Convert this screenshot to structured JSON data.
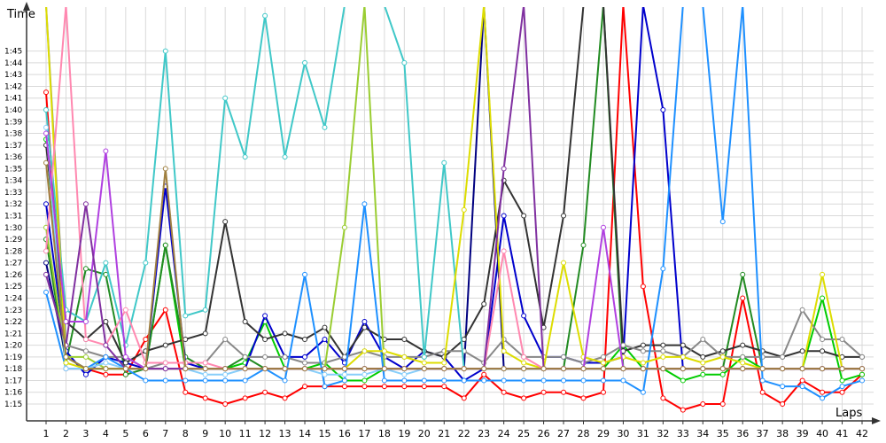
{
  "chart_data": {
    "type": "line",
    "title": "",
    "ylabel": "Time",
    "xlabel": "Laps",
    "x": [
      1,
      2,
      3,
      4,
      5,
      6,
      7,
      8,
      9,
      10,
      11,
      12,
      13,
      14,
      15,
      16,
      17,
      18,
      19,
      20,
      21,
      22,
      23,
      24,
      25,
      26,
      27,
      28,
      29,
      30,
      31,
      32,
      33,
      34,
      35,
      36,
      37,
      38,
      39,
      40,
      41,
      42
    ],
    "y_ticks": [
      "1:15",
      "1:16",
      "1:17",
      "1:18",
      "1:19",
      "1:20",
      "1:21",
      "1:22",
      "1:23",
      "1:24",
      "1:25",
      "1:26",
      "1:27",
      "1:28",
      "1:29",
      "1:30",
      "1:31",
      "1:32",
      "1:33",
      "1:34",
      "1:35",
      "1:36",
      "1:37",
      "1:38",
      "1:39",
      "1:40",
      "1:41",
      "1:42",
      "1:43",
      "1:44",
      "1:45"
    ],
    "ylim": [
      74,
      151
    ],
    "grid": true,
    "legend": "none",
    "series": [
      {
        "color": "#ff0000",
        "values": [
          101.5,
          78,
          78,
          77.5,
          77.5,
          80.5,
          83,
          76,
          75.5,
          75,
          75.5,
          76,
          75.5,
          76.5,
          76.5,
          76.5,
          76.5,
          76.5,
          76.5,
          76.5,
          76.5,
          75.5,
          77.5,
          76,
          75.5,
          76,
          76,
          75.5,
          76,
          150,
          85,
          75.5,
          74.5,
          75,
          75,
          84,
          76,
          75,
          77,
          76,
          76,
          77.5
        ]
      },
      {
        "color": "#00cc00",
        "values": [
          97.5,
          79,
          78,
          78,
          78,
          78,
          88.5,
          78,
          78,
          78,
          78.5,
          82,
          78,
          78,
          78.5,
          77,
          77,
          78,
          78,
          78,
          78,
          78,
          78,
          78,
          78,
          78,
          78,
          78,
          78,
          80,
          78,
          78,
          77,
          77.5,
          77.5,
          79,
          78,
          78,
          78,
          84,
          77,
          77.5
        ]
      },
      {
        "color": "#228b22",
        "values": [
          89,
          78.5,
          86.5,
          86,
          77.5,
          78,
          88.5,
          79,
          78,
          78,
          79,
          78,
          78,
          78,
          78,
          78,
          78,
          78,
          78,
          78,
          78,
          78,
          78,
          78,
          78,
          78,
          78,
          88.5,
          150,
          78,
          78,
          78,
          78,
          78,
          78,
          86,
          78,
          78,
          78,
          78,
          78,
          78
        ]
      },
      {
        "color": "#0000cc",
        "values": [
          92,
          79.5,
          77.5,
          79,
          78.5,
          78,
          93.5,
          78.5,
          78,
          78,
          78,
          82.5,
          79,
          79,
          80.5,
          78.5,
          82,
          79,
          78,
          79.5,
          79,
          77,
          78,
          91,
          82.5,
          79,
          79,
          78.5,
          78.5,
          79,
          150,
          100,
          78,
          78,
          78,
          78,
          78,
          78,
          78,
          78,
          78,
          78
        ]
      },
      {
        "color": "#000080",
        "values": [
          87,
          79,
          78,
          78,
          78,
          78,
          78,
          78,
          78,
          78,
          78,
          78,
          78,
          78,
          78,
          78,
          78,
          78,
          78,
          78,
          78,
          78,
          150,
          78,
          78,
          78,
          78,
          78,
          78,
          78,
          78,
          78,
          78,
          78,
          78,
          78,
          78,
          78,
          78,
          78,
          78,
          78
        ]
      },
      {
        "color": "#333333",
        "values": [
          97,
          82,
          80.5,
          82,
          78.5,
          79.5,
          80,
          80.5,
          81,
          90.5,
          82,
          80.5,
          81,
          80.5,
          81.5,
          79,
          81.5,
          80.5,
          80.5,
          79.5,
          79,
          80.5,
          83.5,
          94,
          91,
          81.5,
          91,
          150,
          150,
          79.5,
          80,
          80,
          80,
          79,
          79.5,
          80,
          79.5,
          79,
          79.5,
          79.5,
          79,
          79
        ]
      },
      {
        "color": "#888888",
        "values": [
          150,
          80,
          79.5,
          79,
          79,
          78,
          78.5,
          78.5,
          78.5,
          80.5,
          79,
          79,
          79,
          78.5,
          78.5,
          79,
          79.5,
          79,
          79,
          79,
          79.5,
          79.5,
          78.5,
          80.5,
          79,
          79,
          79,
          78.5,
          79,
          80,
          79.5,
          79.5,
          79,
          80.5,
          79,
          79,
          79,
          79,
          83,
          80.5,
          80.5,
          79
        ]
      },
      {
        "color": "#9acd32",
        "values": [
          90,
          79,
          79,
          78,
          78,
          78,
          78,
          78,
          78,
          78,
          78,
          78,
          78,
          78,
          78,
          90,
          150,
          78,
          78,
          78,
          78,
          78,
          78,
          78,
          78,
          78,
          78,
          78,
          78,
          78,
          78,
          78,
          78,
          78,
          78,
          78,
          78,
          78,
          78,
          78,
          78,
          78
        ]
      },
      {
        "color": "#40c8c8",
        "values": [
          100,
          83,
          82,
          87,
          80,
          87,
          105,
          82.5,
          83,
          101,
          96,
          108,
          96,
          104,
          98.5,
          150,
          150,
          150,
          104,
          79,
          95.5,
          78,
          78,
          78,
          78,
          78,
          78,
          78,
          78,
          78,
          78,
          78,
          78,
          78,
          78,
          78,
          78,
          78,
          78,
          78,
          78,
          78
        ]
      },
      {
        "color": "#1e90ff",
        "values": [
          84.5,
          78,
          78,
          79,
          78,
          77,
          77,
          77,
          77,
          77,
          77,
          78,
          77,
          86,
          76.5,
          77,
          92,
          77,
          77,
          77,
          77,
          77,
          77,
          77,
          77,
          77,
          77,
          77,
          77,
          77,
          76,
          86.5,
          150,
          150,
          90.5,
          150,
          77,
          76.5,
          76.5,
          75.5,
          76.5,
          77
        ]
      },
      {
        "color": "#87cefa",
        "values": [
          98.5,
          78,
          78,
          78.5,
          78,
          78,
          78,
          78,
          77.5,
          77.5,
          78,
          78,
          78,
          78,
          77.5,
          77.5,
          77.5,
          78,
          77.5,
          78,
          78,
          78,
          78,
          78,
          78,
          78,
          78,
          78,
          78,
          78,
          78,
          78,
          78,
          78,
          78,
          78,
          78,
          78,
          78,
          78,
          78,
          78
        ]
      },
      {
        "color": "#dddd00",
        "values": [
          150,
          78.5,
          78,
          78,
          78,
          78,
          78,
          78,
          78,
          78,
          78,
          78,
          78,
          78,
          78,
          78,
          79.5,
          79.5,
          79,
          78.5,
          78.5,
          91.5,
          150,
          79.5,
          78.5,
          78,
          87,
          79,
          78.5,
          79,
          78.5,
          79,
          79,
          78.5,
          79,
          78.5,
          78,
          78,
          78,
          86,
          78,
          78
        ]
      },
      {
        "color": "#ff88b0",
        "values": [
          88,
          150,
          80.5,
          80,
          83,
          78.5,
          78.5,
          78.5,
          78.5,
          78,
          78,
          78,
          78,
          78,
          78,
          78,
          78,
          78,
          78,
          78,
          78,
          78,
          78,
          88,
          79,
          78,
          78,
          78,
          78,
          78,
          78,
          78,
          78,
          78,
          78,
          78,
          78,
          78,
          78,
          78,
          78,
          78
        ]
      },
      {
        "color": "#b040e0",
        "values": [
          98,
          82,
          82,
          96.5,
          79,
          78,
          78,
          78,
          78,
          78,
          78,
          78,
          78,
          78,
          78,
          78,
          78,
          78,
          78,
          78,
          78,
          78,
          78,
          78,
          78,
          78,
          78,
          78,
          90,
          78,
          78,
          78,
          78,
          78,
          78,
          78,
          78,
          78,
          78,
          78,
          78,
          78
        ]
      },
      {
        "color": "#8030a0",
        "values": [
          86,
          80,
          92,
          80,
          78,
          78,
          78,
          78,
          78,
          78,
          78,
          78,
          78,
          78,
          78,
          78,
          78,
          78,
          78,
          78,
          78,
          78,
          78,
          95,
          150,
          78,
          78,
          78,
          78,
          78,
          78,
          78,
          78,
          78,
          78,
          78,
          78,
          78,
          78,
          78,
          78,
          78
        ]
      },
      {
        "color": "#a08040",
        "values": [
          95.5,
          79,
          78,
          78,
          78,
          78,
          95,
          78,
          78,
          78,
          78,
          78,
          78,
          78,
          78,
          78,
          78,
          78,
          78,
          78,
          78,
          78,
          78,
          78,
          78,
          78,
          78,
          78,
          78,
          78,
          78,
          78,
          78,
          78,
          78,
          78,
          78,
          78,
          78,
          78,
          78,
          78
        ]
      }
    ]
  }
}
